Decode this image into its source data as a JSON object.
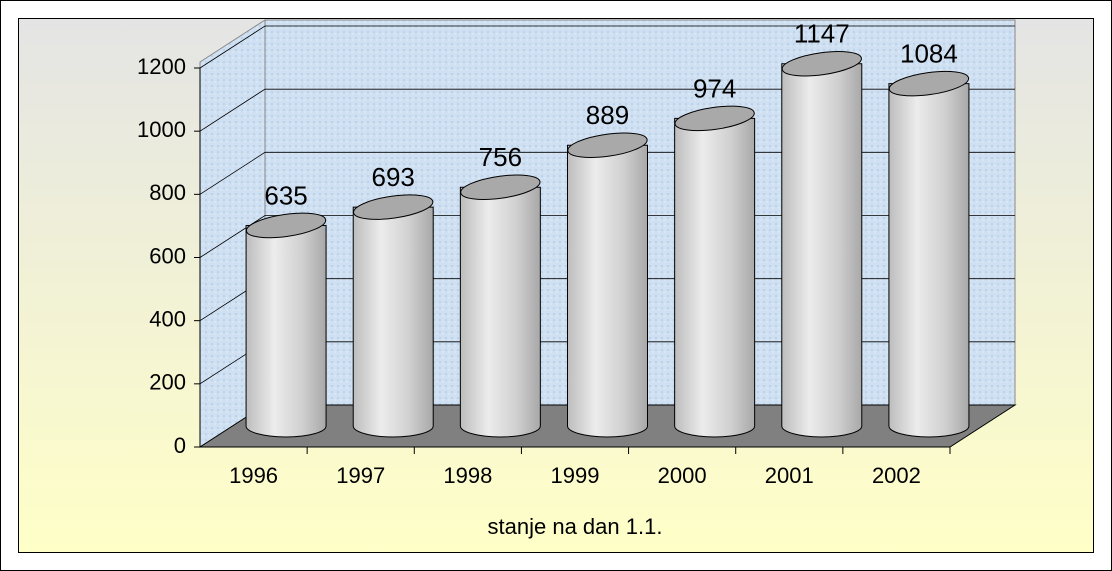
{
  "chart_data": {
    "type": "bar3d",
    "categories": [
      "1996",
      "1997",
      "1998",
      "1999",
      "2000",
      "2001",
      "2002"
    ],
    "values": [
      635,
      693,
      756,
      889,
      974,
      1147,
      1084
    ],
    "color": "#d4d4d4",
    "xlabel": "stanje na dan 1.1.",
    "ylim": [
      0,
      1200
    ],
    "yticks": [
      0,
      200,
      400,
      600,
      800,
      1000,
      1200
    ],
    "grid": true
  }
}
